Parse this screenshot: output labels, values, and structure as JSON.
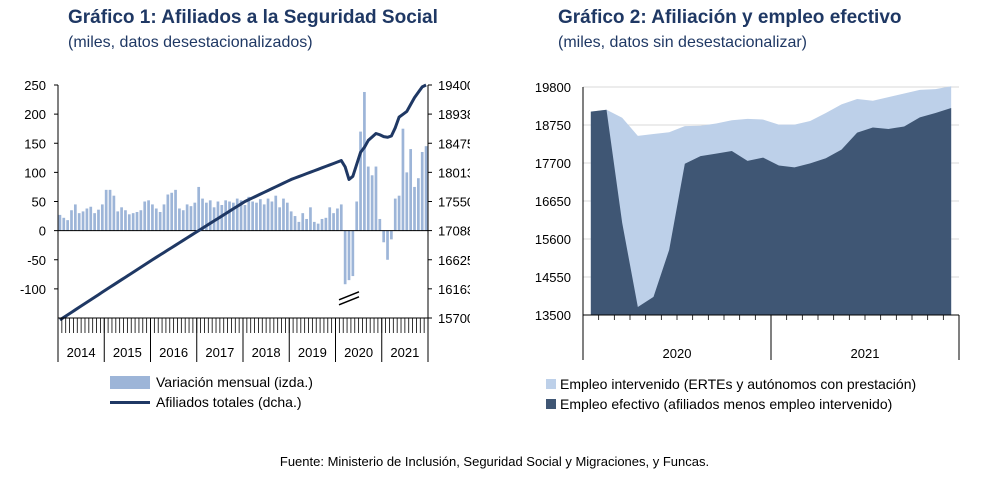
{
  "chart_data": [
    {
      "type": "bar+line",
      "title": "Gráfico 1: Afiliados a la Seguridad Social",
      "subtitle": "(miles, datos desestacionalizados)",
      "left_axis": {
        "ylim": [
          -150,
          250
        ],
        "ticks": [
          "250",
          "200",
          "150",
          "100",
          "50",
          "0",
          "-50",
          "-100"
        ]
      },
      "right_axis": {
        "ylim": [
          15700,
          19400
        ],
        "ticks": [
          "19400",
          "18938",
          "18475",
          "18013",
          "17550",
          "17088",
          "16625",
          "16163",
          "15700"
        ]
      },
      "x_labels": [
        "2014",
        "2015",
        "2016",
        "2017",
        "2018",
        "2019",
        "2020",
        "2021"
      ],
      "series": [
        {
          "name": "Variación mensual (izda.)",
          "kind": "bar",
          "color": "#9db5d8",
          "values": [
            27,
            22,
            18,
            35,
            45,
            30,
            33,
            38,
            41,
            30,
            36,
            45,
            70,
            70,
            60,
            33,
            40,
            35,
            28,
            30,
            32,
            35,
            50,
            52,
            45,
            38,
            32,
            45,
            62,
            65,
            70,
            38,
            35,
            45,
            42,
            48,
            75,
            55,
            48,
            52,
            40,
            50,
            44,
            52,
            50,
            48,
            55,
            52,
            44,
            58,
            50,
            48,
            54,
            45,
            55,
            50,
            60,
            40,
            55,
            48,
            33,
            25,
            15,
            30,
            20,
            40,
            15,
            12,
            20,
            22,
            40,
            30,
            38,
            45,
            -92,
            -85,
            -78,
            50,
            170,
            238,
            110,
            95,
            110,
            20,
            -20,
            -50,
            -15,
            55,
            60,
            175,
            100,
            140,
            75,
            90,
            135,
            145
          ]
        },
        {
          "name": "Afiliados totales (dcha.)",
          "kind": "line",
          "color": "#1f3864",
          "anchors": [
            [
              0,
              15670
            ],
            [
              12,
              16150
            ],
            [
              24,
              16625
            ],
            [
              36,
              17088
            ],
            [
              48,
              17550
            ],
            [
              60,
              17900
            ],
            [
              73,
              18200
            ],
            [
              74,
              18100
            ],
            [
              75,
              17900
            ],
            [
              76,
              17950
            ],
            [
              78,
              18330
            ],
            [
              79,
              18410
            ],
            [
              80,
              18520
            ],
            [
              82,
              18630
            ],
            [
              83,
              18610
            ],
            [
              84,
              18580
            ],
            [
              85,
              18570
            ],
            [
              86,
              18590
            ],
            [
              87,
              18720
            ],
            [
              88,
              18890
            ],
            [
              90,
              18980
            ],
            [
              92,
              19200
            ],
            [
              94,
              19370
            ],
            [
              95,
              19400
            ]
          ]
        }
      ],
      "axis_break": true
    },
    {
      "type": "area",
      "title": "Gráfico 2: Afiliación y empleo efectivo",
      "subtitle": "(miles, datos sin desestacionalizar)",
      "ylim": [
        13500,
        19800
      ],
      "y_ticks": [
        "19800",
        "18750",
        "17700",
        "16650",
        "15600",
        "14550",
        "13500"
      ],
      "x_labels": [
        "2020",
        "2021"
      ],
      "series": [
        {
          "name": "Empleo intervenido (ERTEs y autónomos con prestación)",
          "color": "#bdd0e9",
          "total_values": [
            19120,
            19170,
            18950,
            18450,
            18500,
            18550,
            18720,
            18730,
            18790,
            18880,
            18920,
            18900,
            18760,
            18760,
            18860,
            19080,
            19320,
            19470,
            19420,
            19520,
            19620,
            19720,
            19740,
            19820
          ]
        },
        {
          "name": "Empleo efectivo (afiliados menos empleo intervenido)",
          "color": "#3f5674",
          "values": [
            19120,
            19170,
            16050,
            13720,
            14000,
            15300,
            17680,
            17890,
            17960,
            18030,
            17760,
            17850,
            17630,
            17580,
            17690,
            17830,
            18070,
            18540,
            18680,
            18640,
            18710,
            18960,
            19080,
            19220
          ]
        }
      ]
    }
  ],
  "source": "Fuente: Ministerio de Inclusión, Seguridad Social y Migraciones, y Funcas.",
  "axis_break_symbol": "//"
}
